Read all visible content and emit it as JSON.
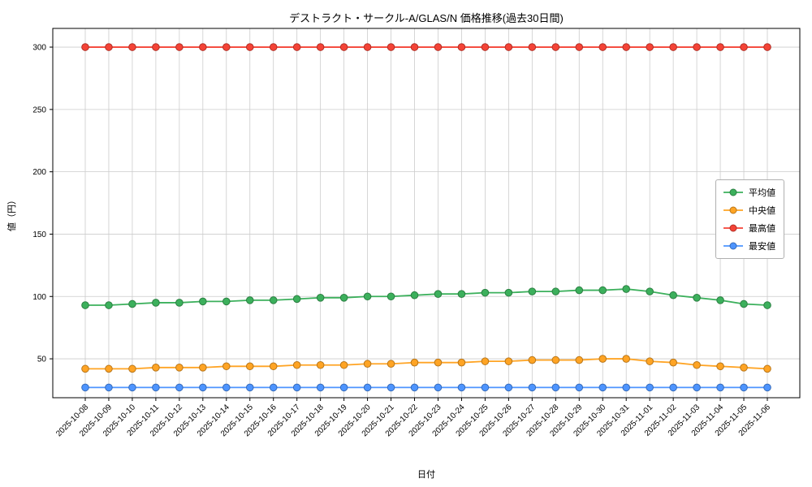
{
  "title": "デストラクト・サークル-A/GLAS/N 価格推移(過去30日間)",
  "xlabel": "日付",
  "ylabel": "値（円）",
  "colors": {
    "grid": "#cccccc",
    "axis": "#000000",
    "background": "#ffffff"
  },
  "chart_data": {
    "type": "line",
    "title": "デストラクト・サークル-A/GLAS/N 価格推移(過去30日間)",
    "xlabel": "日付",
    "ylabel": "値（円）",
    "grid": true,
    "legend_position": "right",
    "ylim": [
      18.8,
      315
    ],
    "yticks": [
      50,
      100,
      150,
      200,
      250,
      300
    ],
    "x": [
      "2025-10-08",
      "2025-10-09",
      "2025-10-10",
      "2025-10-11",
      "2025-10-12",
      "2025-10-13",
      "2025-10-14",
      "2025-10-15",
      "2025-10-16",
      "2025-10-17",
      "2025-10-18",
      "2025-10-19",
      "2025-10-20",
      "2025-10-21",
      "2025-10-22",
      "2025-10-23",
      "2025-10-24",
      "2025-10-25",
      "2025-10-26",
      "2025-10-27",
      "2025-10-28",
      "2025-10-29",
      "2025-10-30",
      "2025-10-31",
      "2025-11-01",
      "2025-11-02",
      "2025-11-03",
      "2025-11-04",
      "2025-11-05",
      "2025-11-06"
    ],
    "series": [
      {
        "name": "平均値",
        "color": "#3cb05c",
        "values": [
          93,
          93,
          94,
          95,
          95,
          96,
          96,
          97,
          97,
          98,
          99,
          99,
          100,
          100,
          101,
          102,
          102,
          103,
          103,
          104,
          104,
          105,
          105,
          106,
          104,
          101,
          99,
          97,
          94,
          93
        ]
      },
      {
        "name": "中央値",
        "color": "#ffa424",
        "values": [
          42,
          42,
          42,
          43,
          43,
          43,
          44,
          44,
          44,
          45,
          45,
          45,
          46,
          46,
          47,
          47,
          47,
          48,
          48,
          49,
          49,
          49,
          50,
          50,
          48,
          47,
          45,
          44,
          43,
          42
        ]
      },
      {
        "name": "最高値",
        "color": "#f44336",
        "values": [
          300,
          300,
          300,
          300,
          300,
          300,
          300,
          300,
          300,
          300,
          300,
          300,
          300,
          300,
          300,
          300,
          300,
          300,
          300,
          300,
          300,
          300,
          300,
          300,
          300,
          300,
          300,
          300,
          300,
          300
        ]
      },
      {
        "name": "最安値",
        "color": "#4d94ff",
        "values": [
          27,
          27,
          27,
          27,
          27,
          27,
          27,
          27,
          27,
          27,
          27,
          27,
          27,
          27,
          27,
          27,
          27,
          27,
          27,
          27,
          27,
          27,
          27,
          27,
          27,
          27,
          27,
          27,
          27,
          27
        ]
      }
    ]
  }
}
